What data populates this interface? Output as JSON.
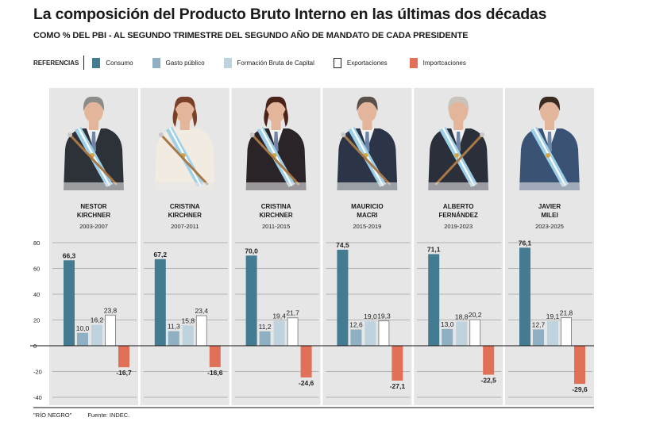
{
  "header": {
    "title": "La composición del Producto Bruto Interno en las últimas dos décadas",
    "subtitle": "COMO % DEL PBI - AL SEGUNDO TRIMESTRE DEL SEGUNDO AÑO DE MANDATO DE CADA PRESIDENTE"
  },
  "legend": {
    "label": "REFERENCIAS",
    "items": [
      {
        "name": "Consumo",
        "color": "#437b91",
        "outline": false
      },
      {
        "name": "Gasto público",
        "color": "#8fb0c3",
        "outline": false
      },
      {
        "name": "Formación Bruta de Capital",
        "color": "#bfd3de",
        "outline": false
      },
      {
        "name": "Exportaciones",
        "color": "#ffffff",
        "outline": true
      },
      {
        "name": "Importcaciones",
        "color": "#e07058",
        "outline": false
      }
    ]
  },
  "footer": {
    "credit": "\"RÍO NEGRO\"",
    "source": "Fuente: INDEC."
  },
  "chart_data": {
    "type": "bar",
    "title": "La composición del Producto Bruto Interno en las últimas dos décadas",
    "subtitle": "COMO % DEL PBI - AL SEGUNDO TRIMESTRE DEL SEGUNDO AÑO DE MANDATO DE CADA PRESIDENTE",
    "xlabel": "",
    "ylabel": "% del PBI",
    "ylim": [
      -40,
      80
    ],
    "yticks": [
      80,
      60,
      40,
      20,
      0,
      -20,
      -40
    ],
    "grid": true,
    "legend_position": "top",
    "categories": [
      {
        "name_line1": "NESTOR",
        "name_line2": "KIRCHNER",
        "period": "2003-2007",
        "portrait": "nestor-kirchner-portrait"
      },
      {
        "name_line1": "CRISTINA",
        "name_line2": "KIRCHNER",
        "period": "2007-2011",
        "portrait": "cristina-kirchner-portrait"
      },
      {
        "name_line1": "CRISTINA",
        "name_line2": "KIRCHNER",
        "period": "2011-2015",
        "portrait": "cristina-kirchner-portrait"
      },
      {
        "name_line1": "MAURICIO",
        "name_line2": "MACRI",
        "period": "2015-2019",
        "portrait": "mauricio-macri-portrait"
      },
      {
        "name_line1": "ALBERTO",
        "name_line2": "FERNÁNDEZ",
        "period": "2019-2023",
        "portrait": "alberto-fernandez-portrait"
      },
      {
        "name_line1": "JAVIER",
        "name_line2": "MILEI",
        "period": "2023-2025",
        "portrait": "javier-milei-portrait"
      }
    ],
    "series": [
      {
        "name": "Consumo",
        "values": [
          66.3,
          67.2,
          70.0,
          74.5,
          71.1,
          76.1
        ],
        "labels": [
          "66,3",
          "67,2",
          "70,0",
          "74,5",
          "71,1",
          "76,1"
        ]
      },
      {
        "name": "Gasto público",
        "values": [
          10.0,
          11.3,
          11.2,
          12.6,
          13.0,
          12.7
        ],
        "labels": [
          "10,0",
          "11,3",
          "11,2",
          "12,6",
          "13,0",
          "12,7"
        ]
      },
      {
        "name": "Formación Bruta de Capital",
        "values": [
          16.2,
          15.8,
          19.4,
          19.0,
          18.8,
          19.1
        ],
        "labels": [
          "16,2",
          "15,8",
          "19,4",
          "19,0",
          "18,8",
          "19,1"
        ]
      },
      {
        "name": "Exportaciones",
        "values": [
          23.8,
          23.4,
          21.7,
          19.3,
          20.2,
          21.8
        ],
        "labels": [
          "23,8",
          "23,4",
          "21,7",
          "19,3",
          "20,2",
          "21,8"
        ]
      },
      {
        "name": "Importcaciones",
        "values": [
          -16.7,
          -16.6,
          -24.6,
          -27.1,
          -22.5,
          -29.6
        ],
        "labels": [
          "-16,7",
          "-16,6",
          "-24,6",
          "-27,1",
          "-22,5",
          "-29,6"
        ]
      }
    ]
  }
}
